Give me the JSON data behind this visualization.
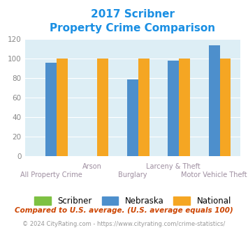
{
  "title_line1": "2017 Scribner",
  "title_line2": "Property Crime Comparison",
  "title_color": "#1a8fe3",
  "categories": [
    "All Property Crime",
    "Arson",
    "Burglary",
    "Larceny & Theft",
    "Motor Vehicle Theft"
  ],
  "cat_labels_bottom": [
    "All Property Crime",
    "",
    "Burglary",
    "",
    "Motor Vehicle Theft"
  ],
  "cat_labels_top": [
    "",
    "Arson",
    "",
    "Larceny & Theft",
    ""
  ],
  "scribner_values": [
    0,
    0,
    0,
    0,
    0
  ],
  "nebraska_values": [
    96,
    0,
    79,
    98,
    114
  ],
  "national_values": [
    100,
    100,
    100,
    100,
    100
  ],
  "scribner_color": "#7dc142",
  "nebraska_color": "#4d8fcc",
  "national_color": "#f5a623",
  "plot_bg_color": "#ddeef5",
  "fig_bg_color": "#ffffff",
  "ylim": [
    0,
    120
  ],
  "yticks": [
    0,
    20,
    40,
    60,
    80,
    100,
    120
  ],
  "ylabel_color": "#888888",
  "xlabel_color_bottom": "#9e8ea0",
  "xlabel_color_top": "#9e8ea0",
  "legend_labels": [
    "Scribner",
    "Nebraska",
    "National"
  ],
  "footnote1": "Compared to U.S. average. (U.S. average equals 100)",
  "footnote2": "© 2024 CityRating.com - https://www.cityrating.com/crime-statistics/",
  "footnote1_color": "#cc4400",
  "footnote2_color": "#999999",
  "footnote2_link_color": "#4d8fcc"
}
